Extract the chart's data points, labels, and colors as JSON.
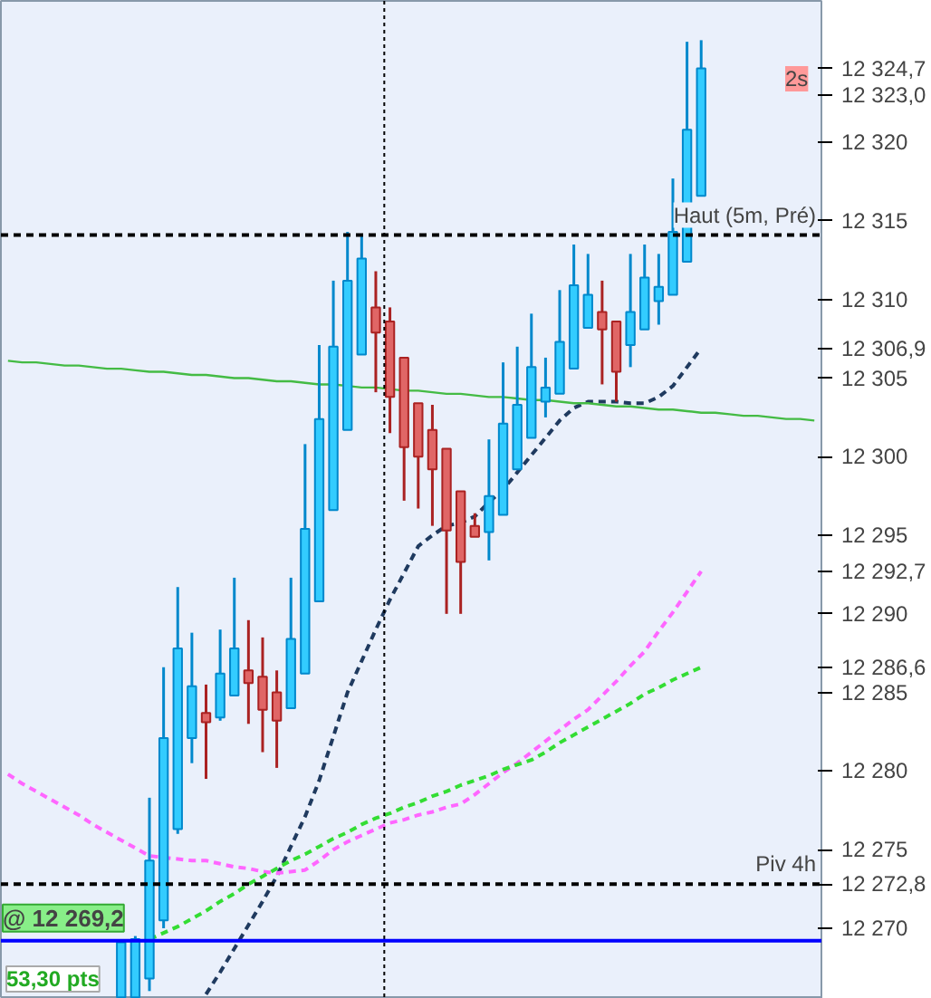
{
  "chart_data": {
    "type": "candlestick",
    "categories": [
      null,
      null,
      null,
      null,
      null,
      null,
      null,
      null,
      null,
      null,
      null,
      null,
      null,
      null,
      null,
      null,
      null,
      null,
      null,
      null,
      null,
      null,
      null,
      null,
      null,
      null,
      null,
      null,
      null,
      null,
      null,
      null,
      null,
      null,
      null,
      null,
      null,
      null,
      null,
      null,
      null,
      null,
      null,
      null,
      null,
      null,
      null,
      null,
      null,
      null,
      null,
      null,
      null,
      null,
      null,
      null,
      null,
      null
    ],
    "ohlc": [
      null,
      null,
      null,
      null,
      null,
      null,
      null,
      null,
      [
        12265.6,
        12269.1,
        12265.6,
        12269.1
      ],
      [
        12265.6,
        12269.5,
        12265.6,
        12269.3
      ],
      [
        12266.8,
        12278.3,
        12266.0,
        12274.3
      ],
      [
        12270.5,
        12286.6,
        12270.0,
        12282.1
      ],
      [
        12276.3,
        12291.7,
        12276.0,
        12287.8
      ],
      [
        12282.1,
        12288.8,
        12280.5,
        12285.4
      ],
      [
        12283.7,
        12285.5,
        12279.5,
        12283.1
      ],
      [
        12283.4,
        12289.0,
        12283.2,
        12286.2
      ],
      [
        12284.8,
        12292.3,
        12284.8,
        12287.8
      ],
      [
        12286.4,
        12289.6,
        12283.0,
        12285.6
      ],
      [
        12286.0,
        12288.5,
        12281.2,
        12283.9
      ],
      [
        12285.0,
        12286.4,
        12280.2,
        12283.2
      ],
      [
        12284.0,
        12292.3,
        12284.0,
        12288.4
      ],
      [
        12286.2,
        12300.8,
        12286.2,
        12295.4
      ],
      [
        12290.8,
        12307.1,
        12290.8,
        12302.4
      ],
      [
        12296.6,
        12311.2,
        12296.6,
        12307.0
      ],
      [
        12301.7,
        12314.3,
        12301.7,
        12311.2
      ],
      [
        12306.5,
        12314.1,
        12306.5,
        12312.6
      ],
      [
        12309.5,
        12311.8,
        12304.1,
        12307.9
      ],
      [
        12308.6,
        12309.5,
        12301.5,
        12303.8
      ],
      [
        12306.3,
        12306.3,
        12297.2,
        12300.6
      ],
      [
        12303.4,
        12303.4,
        12296.7,
        12300.0
      ],
      [
        12301.7,
        12303.3,
        12295.6,
        12299.2
      ],
      [
        12300.5,
        12300.5,
        12290.0,
        12295.3
      ],
      [
        12297.8,
        12297.8,
        12290.0,
        12293.3
      ],
      [
        12295.6,
        12296.4,
        12294.9,
        12294.9
      ],
      [
        12295.2,
        12301.1,
        12293.4,
        12297.5
      ],
      [
        12296.3,
        12306.0,
        12296.3,
        12302.1
      ],
      [
        12299.2,
        12307.0,
        12299.2,
        12303.3
      ],
      [
        12301.2,
        12309.1,
        12301.2,
        12305.7
      ],
      [
        12303.5,
        12306.3,
        12302.5,
        12304.4
      ],
      [
        12304.0,
        12310.6,
        12304.0,
        12307.3
      ],
      [
        12305.6,
        12313.5,
        12305.6,
        12310.9
      ],
      [
        12308.2,
        12312.9,
        12308.2,
        12310.3
      ],
      [
        12309.2,
        12311.2,
        12304.6,
        12308.1
      ],
      [
        12308.6,
        12308.6,
        12303.5,
        12305.4
      ],
      [
        12307.1,
        12312.9,
        12305.7,
        12309.2
      ],
      [
        12308.1,
        12313.5,
        12308.1,
        12311.4
      ],
      [
        12309.9,
        12312.9,
        12308.4,
        12310.8
      ],
      [
        12310.3,
        12317.7,
        12310.3,
        12314.3
      ],
      [
        12312.4,
        12326.4,
        12312.4,
        12320.8
      ],
      [
        12316.6,
        12326.5,
        12316.6,
        12324.7
      ],
      null,
      null,
      null,
      null,
      null,
      null,
      null,
      null
    ],
    "series": [
      {
        "type": "line",
        "color": "#1f3a5f",
        "line_style": "dashed",
        "values": [
          null,
          null,
          null,
          null,
          null,
          null,
          null,
          null,
          null,
          null,
          null,
          null,
          null,
          null,
          12265.8,
          12267.2,
          12268.7,
          12270.2,
          12271.7,
          12273.3,
          12275.2,
          12277.1,
          12279.4,
          12282.2,
          12285.0,
          12287.0,
          12289.0,
          12290.9,
          12292.6,
          12294.3,
          12295.0,
          12295.6,
          12295.8,
          12296.2,
          12297.1,
          12297.9,
          12299.0,
          12300.1,
          12301.2,
          12302.3,
          12303.1,
          12303.5,
          12303.5,
          12303.5,
          12303.4,
          12303.4,
          12303.8,
          12304.5,
          12305.7,
          12306.9,
          null,
          null,
          null,
          null,
          null,
          null,
          null,
          null
        ]
      },
      {
        "type": "line",
        "color": "#ff66ff",
        "line_style": "dashed",
        "values": [
          12279.8,
          12279.2,
          12278.7,
          12278.2,
          12277.7,
          12277.2,
          12276.6,
          12276.1,
          12275.6,
          12275.1,
          12274.6,
          12274.5,
          12274.4,
          12274.3,
          12274.3,
          12274.1,
          12273.9,
          12273.8,
          12273.6,
          12273.5,
          12273.6,
          12273.7,
          12274.3,
          12275.0,
          12275.5,
          12275.9,
          12276.3,
          12276.7,
          12276.9,
          12277.2,
          12277.4,
          12277.7,
          12277.9,
          12278.5,
          12279.2,
          12279.9,
          12280.5,
          12281.2,
          12281.9,
          12282.6,
          12283.3,
          12283.9,
          12284.8,
          12285.7,
          12286.7,
          12287.6,
          12288.9,
          12290.1,
          12291.4,
          12292.7,
          null,
          null,
          null,
          null,
          null,
          null,
          null,
          null
        ]
      },
      {
        "type": "line",
        "color": "#33dd33",
        "line_style": "dashed",
        "values": [
          null,
          null,
          null,
          null,
          null,
          null,
          null,
          null,
          null,
          null,
          12269.3,
          12269.7,
          12270.1,
          12270.6,
          12271.1,
          12271.7,
          12272.2,
          12272.8,
          12273.3,
          12273.8,
          12274.3,
          12274.7,
          12275.2,
          12275.7,
          12276.1,
          12276.6,
          12277.0,
          12277.3,
          12277.7,
          12278.0,
          12278.4,
          12278.7,
          12279.1,
          12279.4,
          12279.7,
          12280.1,
          12280.4,
          12280.7,
          12281.2,
          12281.8,
          12282.3,
          12282.8,
          12283.3,
          12283.8,
          12284.3,
          12284.9,
          12285.3,
          12285.8,
          12286.2,
          12286.6,
          null,
          null,
          null,
          null,
          null,
          null,
          null,
          null
        ]
      },
      {
        "type": "line",
        "color": "#44bb44",
        "line_style": "solid",
        "values": [
          12306.1,
          12306.0,
          12306.0,
          12305.9,
          12305.8,
          12305.8,
          12305.7,
          12305.6,
          12305.6,
          12305.5,
          12305.4,
          12305.4,
          12305.3,
          12305.2,
          12305.2,
          12305.1,
          12305.0,
          12305.0,
          12304.9,
          12304.8,
          12304.8,
          12304.7,
          12304.6,
          12304.6,
          12304.5,
          12304.4,
          12304.4,
          12304.3,
          12304.2,
          12304.2,
          12304.1,
          12304.0,
          12304.0,
          12303.9,
          12303.8,
          12303.8,
          12303.7,
          12303.6,
          12303.6,
          12303.5,
          12303.4,
          12303.4,
          12303.3,
          12303.2,
          12303.2,
          12303.1,
          12303.0,
          12303.0,
          12302.9,
          12302.8,
          12302.8,
          12302.7,
          12302.6,
          12302.6,
          12302.5,
          12302.4,
          12302.4,
          12302.3
        ]
      }
    ],
    "ylim": [
      12265.5,
      12329.0
    ],
    "yticks": [
      12270,
      12275,
      12280,
      12285,
      12290,
      12295,
      12300,
      12305,
      12310,
      12315,
      12320,
      {
        "value": 12324.7,
        "label": "12 324,7"
      },
      {
        "value": 12323.0,
        "label": "12 323,0"
      },
      {
        "value": 12306.9,
        "label": "12 306,9"
      },
      {
        "value": 12292.7,
        "label": "12 292,7"
      },
      {
        "value": 12286.6,
        "label": "12 286,6"
      },
      {
        "value": 12272.8,
        "label": "12 272,8"
      }
    ],
    "tick_labels": "y",
    "ref_lines": [
      {
        "axis": "y",
        "value": 12314.1,
        "label": "Haut (5m, Pré)",
        "color": "#000000",
        "line_style": "dashed"
      },
      {
        "axis": "y",
        "value": 12272.8,
        "label": "Piv 4h",
        "color": "#000000",
        "line_style": "dashed"
      },
      {
        "axis": "y",
        "value": 12269.2,
        "label": "@ 12 269,2",
        "color": "#0000ff",
        "line_style": "solid"
      }
    ],
    "annotations": [
      "2s",
      "53,30 pts"
    ]
  }
}
